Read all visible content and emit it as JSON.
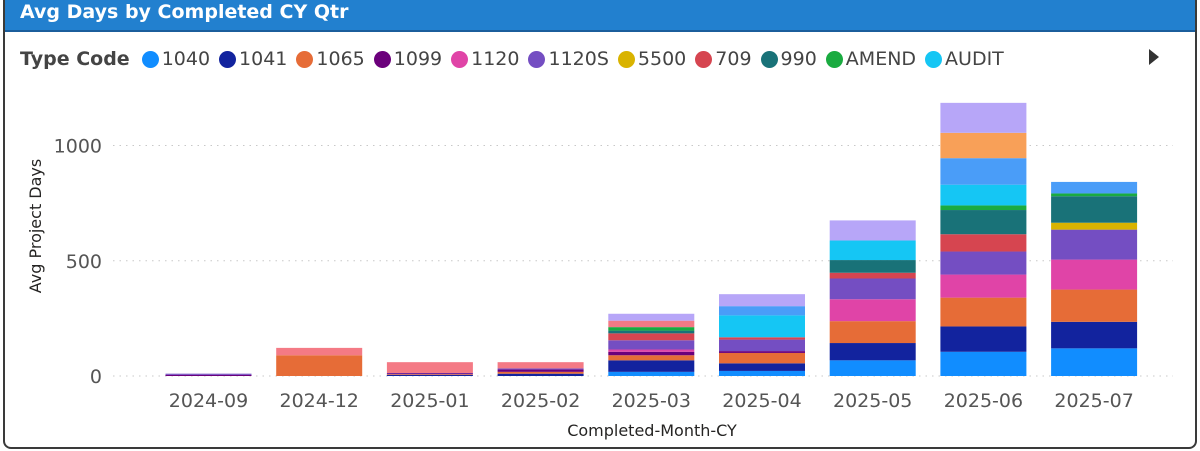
{
  "title": "Avg Days by Completed CY Qtr",
  "legend": {
    "title": "Type Code",
    "items": [
      {
        "name": "1040",
        "color": "#118dff"
      },
      {
        "name": "1041",
        "color": "#12239e"
      },
      {
        "name": "1065",
        "color": "#e66c37"
      },
      {
        "name": "1099",
        "color": "#6b007b"
      },
      {
        "name": "1120",
        "color": "#e044a7"
      },
      {
        "name": "1120S",
        "color": "#744ec2"
      },
      {
        "name": "5500",
        "color": "#d9b300"
      },
      {
        "name": "709",
        "color": "#d64550"
      },
      {
        "name": "990",
        "color": "#197278"
      },
      {
        "name": "AMEND",
        "color": "#1aab40"
      },
      {
        "name": "AUDIT",
        "color": "#15c6f4"
      }
    ]
  },
  "chart_data": {
    "type": "bar",
    "stacked": true,
    "xlabel": "Completed-Month-CY",
    "ylabel": "Avg Project Days",
    "ylim": [
      0,
      1200
    ],
    "yticks": [
      0,
      500,
      1000
    ],
    "grid": "horizontal-dotted",
    "legend_position": "top-left",
    "categories": [
      "2024-09",
      "2024-12",
      "2025-01",
      "2025-02",
      "2025-03",
      "2025-04",
      "2025-05",
      "2025-06",
      "2025-07"
    ],
    "series": [
      {
        "name": "1040",
        "color": "#118dff",
        "values": [
          0,
          0,
          0,
          0,
          18,
          22,
          68,
          105,
          120
        ]
      },
      {
        "name": "1041",
        "color": "#12239e",
        "values": [
          0,
          0,
          5,
          10,
          50,
          33,
          75,
          110,
          115
        ]
      },
      {
        "name": "1065",
        "color": "#e66c37",
        "values": [
          0,
          90,
          3,
          8,
          22,
          45,
          95,
          125,
          140
        ]
      },
      {
        "name": "1099",
        "color": "#6b007b",
        "values": [
          5,
          0,
          3,
          10,
          15,
          8,
          0,
          0,
          0
        ]
      },
      {
        "name": "1120",
        "color": "#e044a7",
        "values": [
          0,
          0,
          0,
          0,
          10,
          0,
          95,
          100,
          130
        ]
      },
      {
        "name": "1120S",
        "color": "#744ec2",
        "values": [
          5,
          0,
          2,
          5,
          40,
          50,
          90,
          100,
          130
        ]
      },
      {
        "name": "5500",
        "color": "#d9b300",
        "values": [
          0,
          0,
          0,
          0,
          0,
          0,
          0,
          0,
          30
        ]
      },
      {
        "name": "709",
        "color": "#d64550",
        "values": [
          0,
          0,
          0,
          0,
          30,
          10,
          25,
          75,
          0
        ]
      },
      {
        "name": "990",
        "color": "#197278",
        "values": [
          0,
          0,
          0,
          0,
          12,
          0,
          55,
          105,
          115
        ]
      },
      {
        "name": "AMEND",
        "color": "#1aab40",
        "values": [
          0,
          0,
          0,
          0,
          15,
          0,
          0,
          20,
          12
        ]
      },
      {
        "name": "AUDIT",
        "color": "#15c6f4",
        "values": [
          0,
          0,
          0,
          0,
          0,
          95,
          85,
          90,
          0
        ]
      },
      {
        "name": "",
        "color": "#4a9df8",
        "values": [
          0,
          0,
          0,
          0,
          0,
          40,
          0,
          115,
          50
        ]
      },
      {
        "name": "",
        "color": "#f8a058",
        "values": [
          0,
          0,
          0,
          0,
          0,
          0,
          0,
          110,
          0
        ]
      },
      {
        "name": "",
        "color": "#f47a85",
        "values": [
          0,
          32,
          47,
          27,
          28,
          0,
          0,
          0,
          0
        ]
      },
      {
        "name": "",
        "color": "#b7a6f8",
        "values": [
          0,
          0,
          0,
          0,
          30,
          52,
          87,
          130,
          0
        ]
      }
    ]
  }
}
